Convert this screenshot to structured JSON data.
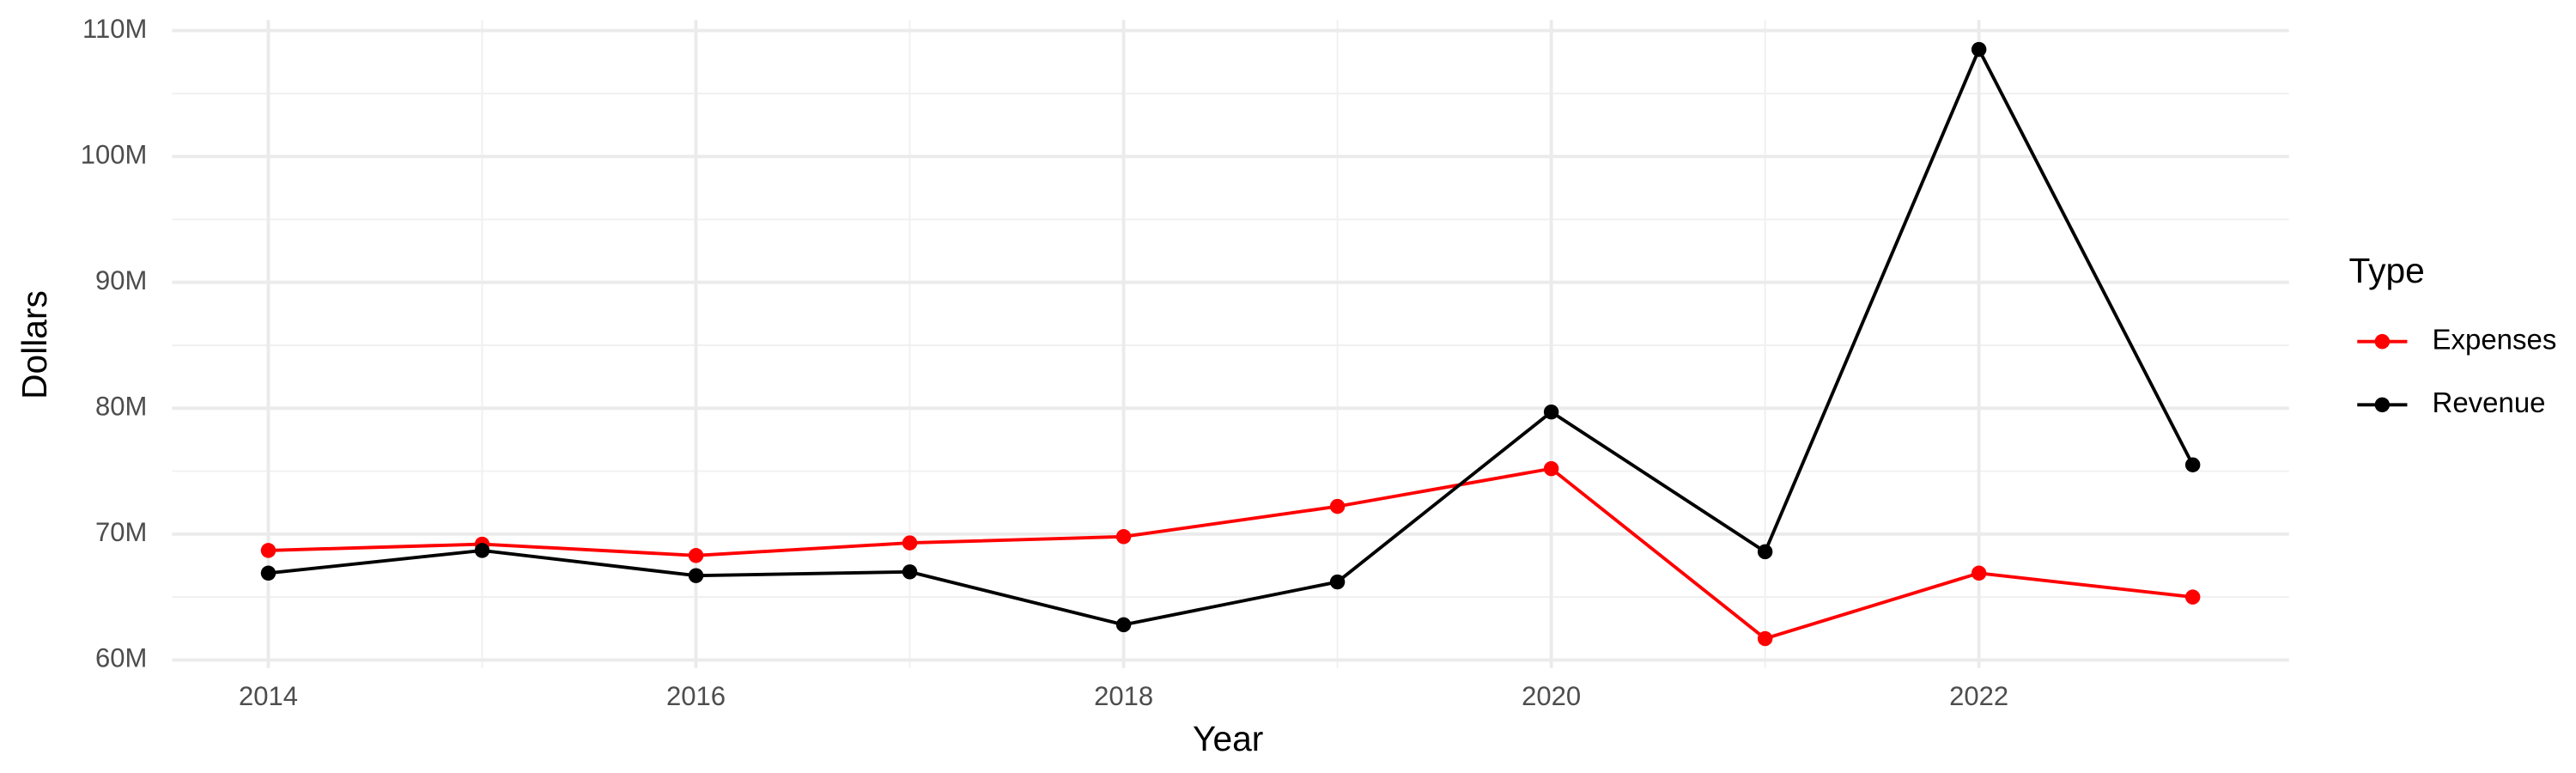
{
  "chart_data": {
    "type": "line",
    "x_label": "Year",
    "y_label": "Dollars",
    "legend_title": "Type",
    "legend_position": "right",
    "grid": true,
    "x": [
      2014,
      2015,
      2016,
      2017,
      2018,
      2019,
      2020,
      2021,
      2022,
      2023
    ],
    "xlim": [
      2013.55,
      2023.45
    ],
    "xticks": [
      2014,
      2016,
      2018,
      2020,
      2022
    ],
    "ylim": [
      59360000,
      110840000
    ],
    "yticks": [
      {
        "value": 60000000,
        "label": "60M"
      },
      {
        "value": 70000000,
        "label": "70M"
      },
      {
        "value": 80000000,
        "label": "80M"
      },
      {
        "value": 90000000,
        "label": "90M"
      },
      {
        "value": 100000000,
        "label": "100M"
      },
      {
        "value": 110000000,
        "label": "110M"
      }
    ],
    "series": [
      {
        "name": "Expenses",
        "color": "#ff0000",
        "values": [
          68700000,
          69200000,
          68300000,
          69300000,
          69800000,
          72200000,
          75200000,
          61700000,
          66900000,
          65000000
        ]
      },
      {
        "name": "Revenue",
        "color": "#000000",
        "values": [
          66900000,
          68700000,
          66700000,
          67000000,
          62800000,
          66200000,
          79700000,
          68600000,
          108500000,
          75500000
        ]
      }
    ]
  }
}
